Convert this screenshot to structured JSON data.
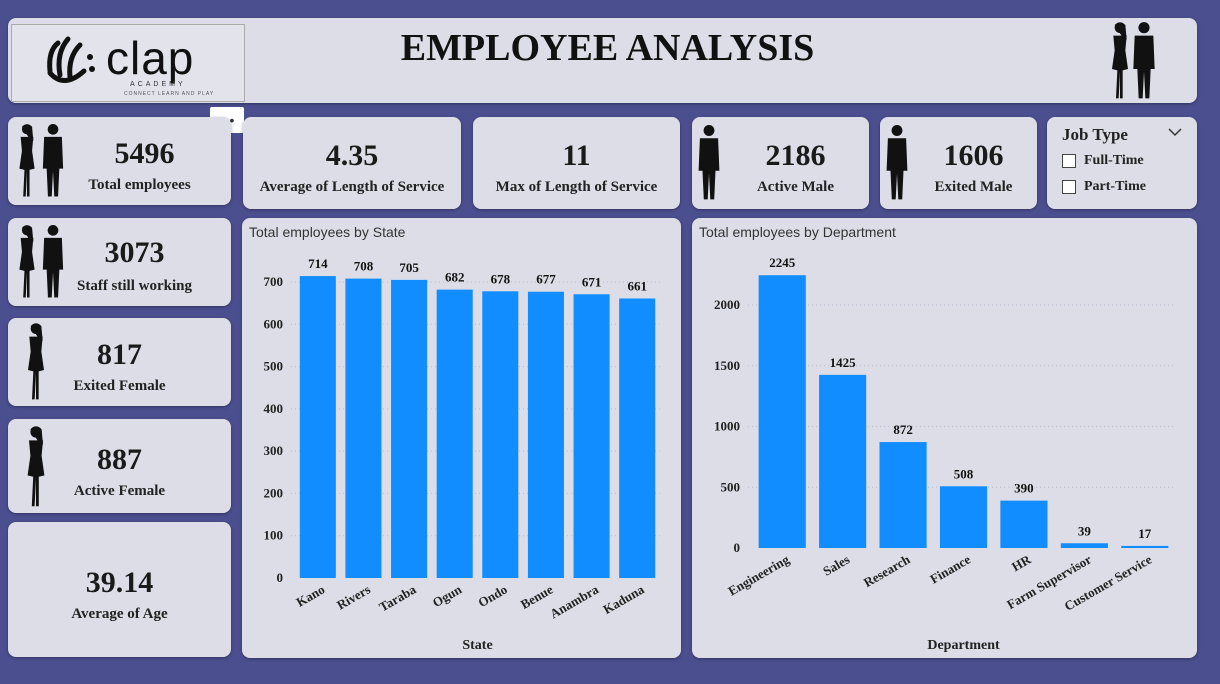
{
  "header": {
    "title": "EMPLOYEE ANALYSIS",
    "logo_text": "clap",
    "logo_sub": "ACADEMY",
    "logo_tag": "CONNECT LEARN AND PLAY",
    "more_label": "•••"
  },
  "kpis": {
    "total_employees": {
      "value": "5496",
      "label": "Total employees"
    },
    "avg_service": {
      "value": "4.35",
      "label": "Average of Length of Service"
    },
    "max_service": {
      "value": "11",
      "label": "Max of Length of Service"
    },
    "active_male": {
      "value": "2186",
      "label": "Active Male"
    },
    "exited_male": {
      "value": "1606",
      "label": "Exited Male"
    },
    "staff_working": {
      "value": "3073",
      "label": "Staff still working"
    },
    "exited_female": {
      "value": "817",
      "label": "Exited Female"
    },
    "active_female": {
      "value": "887",
      "label": "Active Female"
    },
    "avg_age": {
      "value": "39.14",
      "label": "Average of Age"
    }
  },
  "filter": {
    "title": "Job Type",
    "options": [
      "Full-Time",
      "Part-Time"
    ]
  },
  "chart_data": [
    {
      "type": "bar",
      "title": "Total employees by State",
      "xlabel": "State",
      "ylabel": "",
      "categories": [
        "Kano",
        "Rivers",
        "Taraba",
        "Ogun",
        "Ondo",
        "Benue",
        "Anambra",
        "Kaduna"
      ],
      "values": [
        714,
        708,
        705,
        682,
        678,
        677,
        671,
        661
      ],
      "ylim": [
        0,
        700
      ],
      "yticks": [
        0,
        100,
        200,
        300,
        400,
        500,
        600,
        700
      ],
      "color": "#118dff"
    },
    {
      "type": "bar",
      "title": "Total employees by Department",
      "xlabel": "Department",
      "ylabel": "",
      "categories": [
        "Engineering",
        "Sales",
        "Research",
        "Finance",
        "HR",
        "Farm Supervisor",
        "Customer Service"
      ],
      "values": [
        2245,
        1425,
        872,
        508,
        390,
        39,
        17
      ],
      "ylim": [
        0,
        2000
      ],
      "yticks": [
        0,
        500,
        1000,
        1500,
        2000
      ],
      "color": "#118dff"
    }
  ]
}
